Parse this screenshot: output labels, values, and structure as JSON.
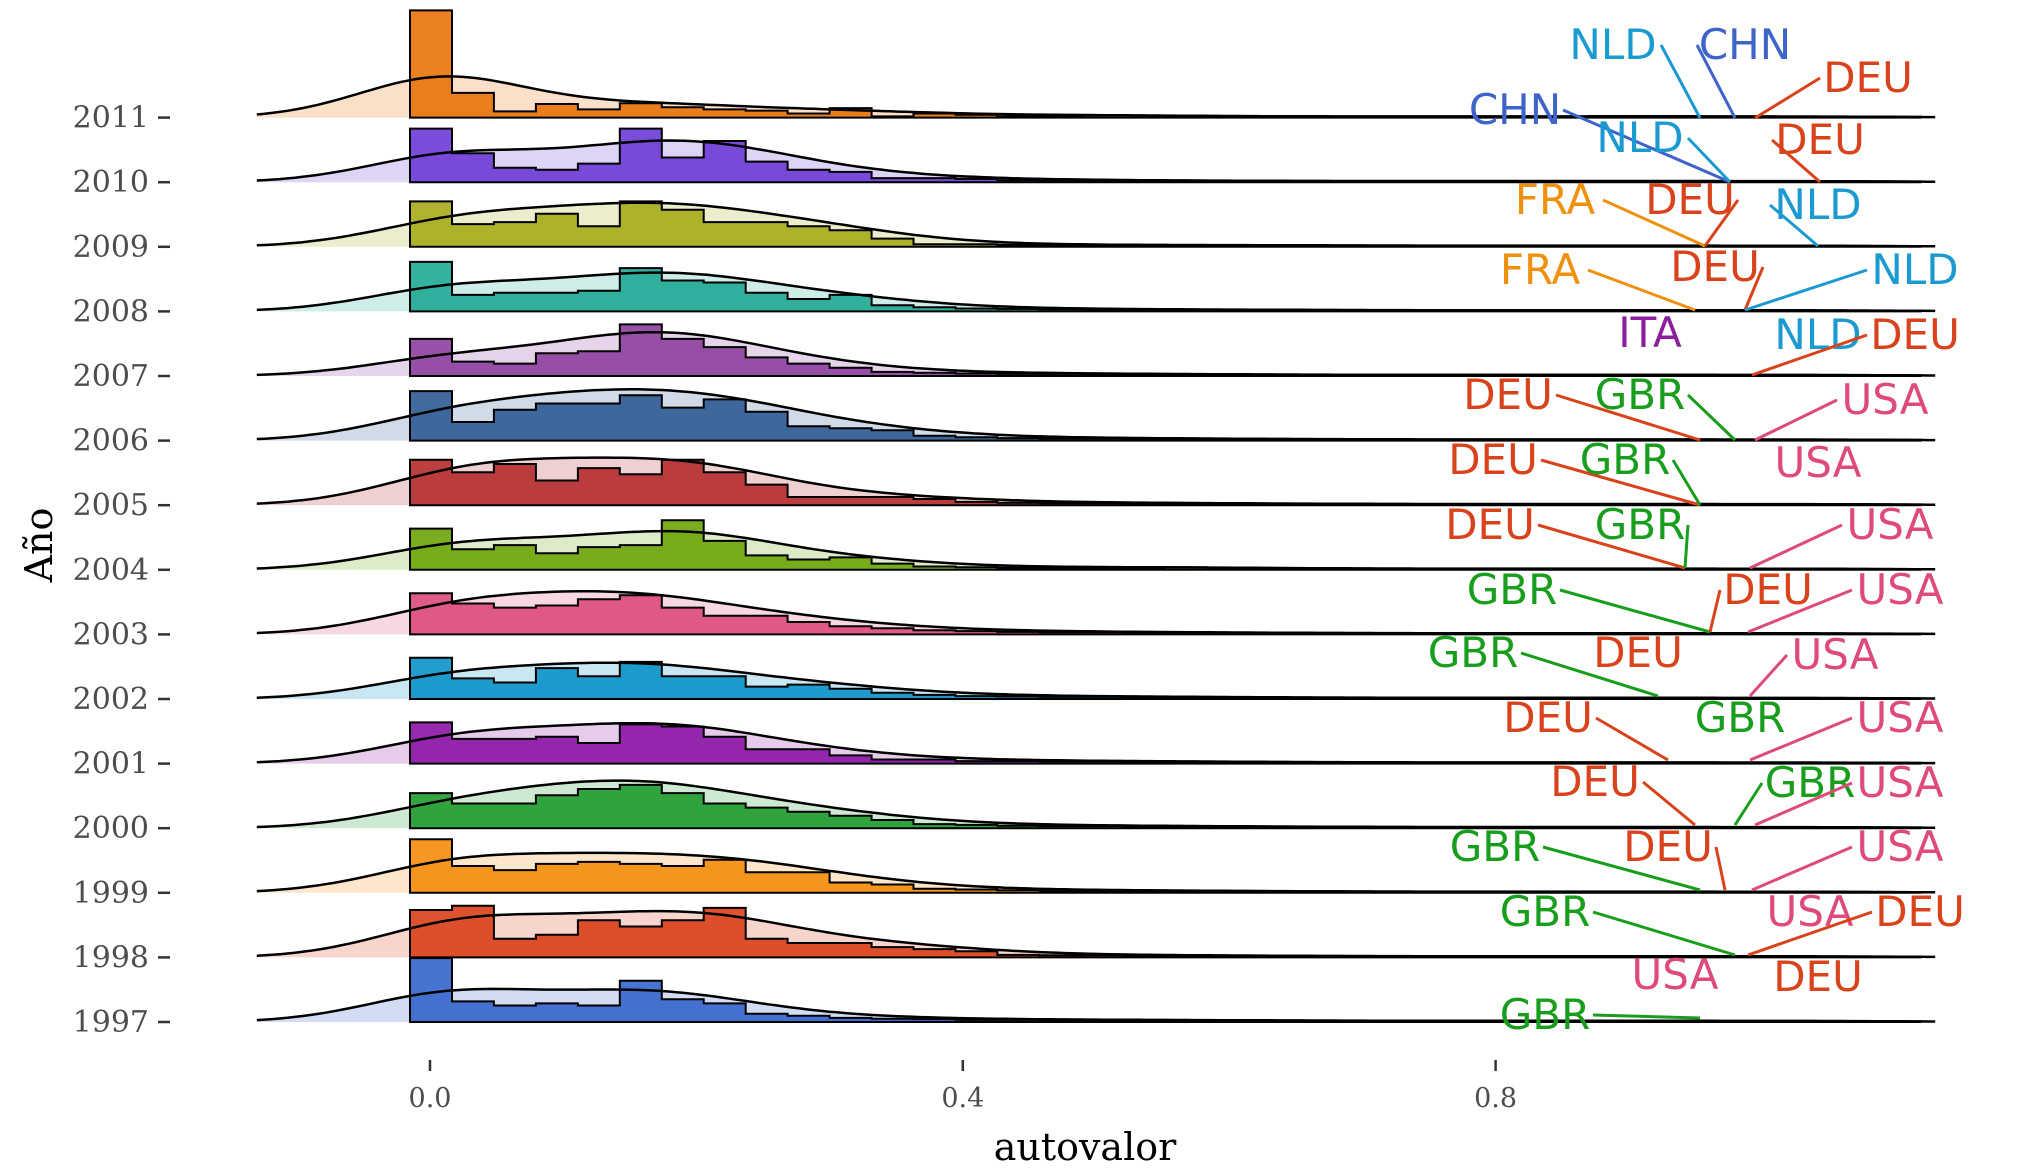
{
  "chart_data": {
    "type": "ridgeline",
    "xlabel": "autovalor",
    "ylabel": "Año",
    "xlim": [
      -0.13,
      1.13
    ],
    "x_ticks": [
      {
        "value": 0.0,
        "label": "0.0"
      },
      {
        "value": 0.4,
        "label": "0.4"
      },
      {
        "value": 0.8,
        "label": "0.8"
      }
    ],
    "y_categories": [
      "1997",
      "1998",
      "1999",
      "2000",
      "2001",
      "2002",
      "2003",
      "2004",
      "2005",
      "2006",
      "2007",
      "2008",
      "2009",
      "2010",
      "2011"
    ],
    "grid": false,
    "legend": "none",
    "ridges": [
      {
        "year": "2011",
        "color": "#e8730a",
        "hist": [
          2.6,
          0.6,
          0.15,
          0.33,
          0.2,
          0.35,
          0.25,
          0.2,
          0.17,
          0.1,
          0.23,
          0.03,
          0.1,
          0.07,
          0.03,
          0.04,
          0.05,
          0.05,
          0.02,
          0.03,
          0.02,
          0.02,
          0.02,
          0.02,
          0.02,
          0.02,
          0.02,
          0.02,
          0.02,
          0.03,
          0.02,
          0.02,
          0.02,
          0.02,
          0.02,
          0.02
        ],
        "density_peak": 0.18,
        "labels": [
          {
            "text": "NLD",
            "color": "#1a9ad1",
            "x": 0.98,
            "y": 0.02
          },
          {
            "text": "CHN",
            "color": "#3f64c9",
            "x": 0.99,
            "y": 0.02
          },
          {
            "text": "DEU",
            "color": "#d9431b",
            "x": 1.0,
            "y": 0.02
          }
        ]
      },
      {
        "year": "2010",
        "color": "#6b3bd6",
        "hist": [
          1.3,
          0.7,
          0.35,
          0.3,
          0.45,
          1.3,
          0.6,
          1.0,
          0.5,
          0.3,
          0.25,
          0.1,
          0.1,
          0.08,
          0.05,
          0.04,
          0.04,
          0.03,
          0.03,
          0.03,
          0.02,
          0.02,
          0.02,
          0.02,
          0.02,
          0.02,
          0.02,
          0.02,
          0.02,
          0.02,
          0.02,
          0.02,
          0.02,
          0.02,
          0.02,
          0.02
        ],
        "density_peak": 0.18,
        "labels": [
          {
            "text": "CHN",
            "color": "#3f64c9",
            "x": 1.0,
            "y": 0.02
          },
          {
            "text": "NLD",
            "color": "#1a9ad1",
            "x": 1.0,
            "y": 0.02
          },
          {
            "text": "DEU",
            "color": "#d9431b",
            "x": 1.0,
            "y": 0.02
          }
        ]
      },
      {
        "year": "2009",
        "color": "#a6ab19",
        "hist": [
          1.1,
          0.55,
          0.6,
          0.8,
          0.5,
          1.1,
          0.9,
          0.6,
          0.6,
          0.5,
          0.4,
          0.2,
          0.06,
          0.06,
          0.05,
          0.04,
          0.03,
          0.03,
          0.03,
          0.03,
          0.03,
          0.03,
          0.02,
          0.02,
          0.02,
          0.02,
          0.02,
          0.02,
          0.02,
          0.02,
          0.02,
          0.02,
          0.02,
          0.02,
          0.02,
          0.02
        ],
        "density_peak": 0.18,
        "labels": [
          {
            "text": "FRA",
            "color": "#f0900f",
            "x": 0.97,
            "y": 0.02
          },
          {
            "text": "DEU",
            "color": "#d9431b",
            "x": 0.97,
            "y": 0.02
          },
          {
            "text": "NLD",
            "color": "#1a9ad1",
            "x": 1.0,
            "y": 0.02
          }
        ]
      },
      {
        "year": "2008",
        "color": "#1faa94",
        "hist": [
          1.2,
          0.4,
          0.45,
          0.45,
          0.5,
          1.05,
          0.75,
          0.7,
          0.45,
          0.3,
          0.4,
          0.15,
          0.1,
          0.07,
          0.06,
          0.05,
          0.04,
          0.04,
          0.03,
          0.03,
          0.03,
          0.03,
          0.02,
          0.02,
          0.02,
          0.02,
          0.02,
          0.02,
          0.02,
          0.02,
          0.02,
          0.02,
          0.02,
          0.02,
          0.02,
          0.02
        ],
        "density_peak": 0.18,
        "labels": [
          {
            "text": "FRA",
            "color": "#f0900f",
            "x": 0.96,
            "y": 0.02
          },
          {
            "text": "DEU",
            "color": "#d9431b",
            "x": 0.98,
            "y": 0.02
          },
          {
            "text": "NLD",
            "color": "#1a9ad1",
            "x": 1.0,
            "y": 0.02
          }
        ]
      },
      {
        "year": "2007",
        "color": "#8e3fa0",
        "hist": [
          0.9,
          0.35,
          0.3,
          0.55,
          0.6,
          1.25,
          0.9,
          0.7,
          0.45,
          0.3,
          0.2,
          0.1,
          0.08,
          0.06,
          0.05,
          0.05,
          0.04,
          0.04,
          0.03,
          0.03,
          0.03,
          0.02,
          0.02,
          0.02,
          0.02,
          0.02,
          0.02,
          0.02,
          0.02,
          0.02,
          0.02,
          0.02,
          0.02,
          0.02,
          0.02,
          0.02
        ],
        "density_peak": 0.16,
        "labels": [
          {
            "text": "ITA",
            "color": "#8b1d9e",
            "x": 0.93,
            "y": 0.02
          },
          {
            "text": "NLD",
            "color": "#1a9ad1",
            "x": 1.0,
            "y": 0.02
          },
          {
            "text": "DEU",
            "color": "#d9431b",
            "x": 1.0,
            "y": 0.02
          }
        ]
      },
      {
        "year": "2006",
        "color": "#2e5b92",
        "hist": [
          1.2,
          0.45,
          0.75,
          0.9,
          0.9,
          1.1,
          0.8,
          1.0,
          0.7,
          0.35,
          0.3,
          0.25,
          0.12,
          0.08,
          0.06,
          0.05,
          0.05,
          0.04,
          0.04,
          0.03,
          0.03,
          0.03,
          0.02,
          0.02,
          0.02,
          0.02,
          0.02,
          0.02,
          0.02,
          0.02,
          0.02,
          0.02,
          0.02,
          0.02,
          0.02,
          0.02
        ],
        "density_peak": 0.14,
        "labels": [
          {
            "text": "DEU",
            "color": "#d9431b",
            "x": 0.96,
            "y": 0.02
          },
          {
            "text": "GBR",
            "color": "#189d1c",
            "x": 0.99,
            "y": 0.02
          },
          {
            "text": "USA",
            "color": "#dd4a7b",
            "x": 1.0,
            "y": 0.02
          }
        ]
      },
      {
        "year": "2005",
        "color": "#b52b2b",
        "hist": [
          1.1,
          0.8,
          1.0,
          0.6,
          0.9,
          0.75,
          1.1,
          0.8,
          0.5,
          0.2,
          0.2,
          0.2,
          0.15,
          0.08,
          0.06,
          0.05,
          0.05,
          0.04,
          0.04,
          0.03,
          0.03,
          0.03,
          0.02,
          0.02,
          0.02,
          0.02,
          0.02,
          0.02,
          0.02,
          0.02,
          0.02,
          0.02,
          0.02,
          0.02,
          0.02,
          0.02
        ],
        "density_peak": 0.14,
        "labels": [
          {
            "text": "DEU",
            "color": "#d9431b",
            "x": 0.97,
            "y": 0.02
          },
          {
            "text": "GBR",
            "color": "#189d1c",
            "x": 0.98,
            "y": 0.02
          },
          {
            "text": "USA",
            "color": "#dd4a7b",
            "x": 1.0,
            "y": 0.02
          }
        ]
      },
      {
        "year": "2004",
        "color": "#6ba508",
        "hist": [
          1.0,
          0.5,
          0.6,
          0.4,
          0.55,
          0.6,
          1.2,
          0.7,
          0.35,
          0.25,
          0.3,
          0.15,
          0.08,
          0.06,
          0.05,
          0.05,
          0.04,
          0.04,
          0.06,
          0.03,
          0.03,
          0.03,
          0.02,
          0.02,
          0.02,
          0.02,
          0.02,
          0.02,
          0.02,
          0.02,
          0.02,
          0.02,
          0.02,
          0.02,
          0.02,
          0.02
        ],
        "density_peak": 0.15,
        "labels": [
          {
            "text": "DEU",
            "color": "#d9431b",
            "x": 0.96,
            "y": 0.02
          },
          {
            "text": "GBR",
            "color": "#189d1c",
            "x": 0.98,
            "y": 0.02
          },
          {
            "text": "USA",
            "color": "#dd4a7b",
            "x": 1.0,
            "y": 0.02
          }
        ]
      },
      {
        "year": "2003",
        "color": "#dc4a7c",
        "hist": [
          1.0,
          0.75,
          0.65,
          0.7,
          0.85,
          0.95,
          0.65,
          0.45,
          0.45,
          0.3,
          0.2,
          0.15,
          0.1,
          0.08,
          0.06,
          0.05,
          0.05,
          0.04,
          0.04,
          0.03,
          0.03,
          0.03,
          0.02,
          0.02,
          0.02,
          0.02,
          0.02,
          0.02,
          0.02,
          0.02,
          0.02,
          0.02,
          0.02,
          0.02,
          0.02,
          0.02
        ],
        "density_peak": 0.17,
        "labels": [
          {
            "text": "GBR",
            "color": "#189d1c",
            "x": 0.97,
            "y": 0.02
          },
          {
            "text": "DEU",
            "color": "#d9431b",
            "x": 0.98,
            "y": 0.02
          },
          {
            "text": "USA",
            "color": "#dd4a7b",
            "x": 1.0,
            "y": 0.02
          }
        ]
      },
      {
        "year": "2002",
        "color": "#0a92c8",
        "hist": [
          1.0,
          0.5,
          0.4,
          0.75,
          0.55,
          0.9,
          0.55,
          0.55,
          0.3,
          0.35,
          0.25,
          0.15,
          0.1,
          0.07,
          0.06,
          0.05,
          0.05,
          0.04,
          0.04,
          0.03,
          0.03,
          0.03,
          0.02,
          0.02,
          0.02,
          0.02,
          0.02,
          0.02,
          0.02,
          0.02,
          0.02,
          0.02,
          0.02,
          0.02,
          0.02,
          0.02
        ],
        "density_peak": 0.17,
        "labels": [
          {
            "text": "GBR",
            "color": "#189d1c",
            "x": 0.95,
            "y": 0.02
          },
          {
            "text": "DEU",
            "color": "#d9431b",
            "x": 0.95,
            "y": 0.02
          },
          {
            "text": "USA",
            "color": "#dd4a7b",
            "x": 1.0,
            "y": 0.02
          }
        ]
      },
      {
        "year": "2001",
        "color": "#8b14a6",
        "hist": [
          1.0,
          0.6,
          0.6,
          0.65,
          0.5,
          0.95,
          0.9,
          0.65,
          0.35,
          0.35,
          0.2,
          0.1,
          0.1,
          0.06,
          0.06,
          0.05,
          0.05,
          0.04,
          0.04,
          0.03,
          0.03,
          0.03,
          0.02,
          0.02,
          0.02,
          0.02,
          0.02,
          0.02,
          0.02,
          0.02,
          0.02,
          0.02,
          0.02,
          0.02,
          0.02,
          0.02
        ],
        "density_peak": 0.16,
        "labels": [
          {
            "text": "DEU",
            "color": "#d9431b",
            "x": 0.94,
            "y": 0.02
          },
          {
            "text": "GBR",
            "color": "#189d1c",
            "x": 0.99,
            "y": 0.02
          },
          {
            "text": "USA",
            "color": "#dd4a7b",
            "x": 1.0,
            "y": 0.02
          }
        ]
      },
      {
        "year": "2000",
        "color": "#1f9b2e",
        "hist": [
          0.85,
          0.6,
          0.6,
          0.8,
          0.95,
          1.05,
          0.85,
          0.6,
          0.5,
          0.4,
          0.3,
          0.2,
          0.1,
          0.08,
          0.06,
          0.05,
          0.05,
          0.04,
          0.04,
          0.03,
          0.03,
          0.03,
          0.02,
          0.02,
          0.02,
          0.02,
          0.02,
          0.02,
          0.02,
          0.02,
          0.02,
          0.02,
          0.02,
          0.02,
          0.02,
          0.02
        ],
        "density_peak": 0.18,
        "labels": [
          {
            "text": "DEU",
            "color": "#d9431b",
            "x": 0.97,
            "y": 0.02
          },
          {
            "text": "GBR",
            "color": "#189d1c",
            "x": 0.99,
            "y": 0.02
          },
          {
            "text": "USA",
            "color": "#dd4a7b",
            "x": 1.0,
            "y": 0.02
          }
        ]
      },
      {
        "year": "1999",
        "color": "#f58c0a",
        "hist": [
          1.3,
          0.65,
          0.55,
          0.7,
          0.75,
          0.7,
          0.65,
          0.8,
          0.5,
          0.5,
          0.25,
          0.2,
          0.1,
          0.08,
          0.06,
          0.05,
          0.05,
          0.04,
          0.04,
          0.03,
          0.03,
          0.03,
          0.02,
          0.02,
          0.02,
          0.02,
          0.02,
          0.02,
          0.02,
          0.02,
          0.02,
          0.02,
          0.02,
          0.02,
          0.02,
          0.02
        ],
        "density_peak": 0.03,
        "labels": [
          {
            "text": "GBR",
            "color": "#189d1c",
            "x": 0.96,
            "y": 0.02
          },
          {
            "text": "DEU",
            "color": "#d9431b",
            "x": 0.98,
            "y": 0.02
          },
          {
            "text": "USA",
            "color": "#dd4a7b",
            "x": 1.0,
            "y": 0.02
          }
        ]
      },
      {
        "year": "1998",
        "color": "#d9401a",
        "hist": [
          1.15,
          1.25,
          0.45,
          0.55,
          0.9,
          0.75,
          0.9,
          1.2,
          0.45,
          0.35,
          0.35,
          0.25,
          0.2,
          0.15,
          0.06,
          0.05,
          0.05,
          0.04,
          0.04,
          0.03,
          0.03,
          0.03,
          0.02,
          0.02,
          0.02,
          0.02,
          0.02,
          0.02,
          0.02,
          0.02,
          0.02,
          0.02,
          0.02,
          0.02,
          0.02,
          0.02
        ],
        "density_peak": 0.02,
        "labels": [
          {
            "text": "GBR",
            "color": "#189d1c",
            "x": 0.99,
            "y": 0.02
          },
          {
            "text": "USA",
            "color": "#dd4a7b",
            "x": 1.0,
            "y": 0.02
          },
          {
            "text": "DEU",
            "color": "#d9431b",
            "x": 1.0,
            "y": 0.02
          }
        ]
      },
      {
        "year": "1997",
        "color": "#3465cc",
        "hist": [
          1.55,
          0.5,
          0.4,
          0.45,
          0.4,
          1.0,
          0.55,
          0.45,
          0.2,
          0.15,
          0.1,
          0.08,
          0.07,
          0.05,
          0.05,
          0.04,
          0.04,
          0.04,
          0.03,
          0.03,
          0.03,
          0.03,
          0.02,
          0.02,
          0.02,
          0.02,
          0.02,
          0.02,
          0.02,
          0.02,
          0.02,
          0.02,
          0.02,
          0.02,
          0.02,
          0.02
        ],
        "density_peak": 0.02,
        "labels": [
          {
            "text": "USA",
            "color": "#dd4a7b",
            "x": 0.96,
            "y": 0.02
          },
          {
            "text": "DEU",
            "color": "#d9431b",
            "x": 1.0,
            "y": 0.02
          },
          {
            "text": "GBR",
            "color": "#189d1c",
            "x": 0.96,
            "y": 0.02
          }
        ]
      }
    ]
  }
}
